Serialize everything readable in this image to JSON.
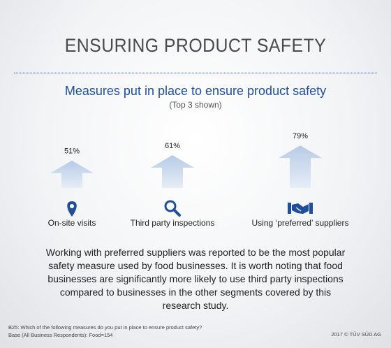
{
  "header": {
    "title": "ENSURING PRODUCT SAFETY"
  },
  "chart_data": {
    "type": "bar",
    "title": "Measures put in place to ensure product safety",
    "subtitle": "(Top 3 shown)",
    "categories": [
      "On-site visits",
      "Third party inspections",
      "Using ‘preferred’ suppliers"
    ],
    "values": [
      51,
      61,
      79
    ],
    "value_labels": [
      "51%",
      "61%",
      "79%"
    ],
    "icons": [
      "location-pin-icon",
      "magnifier-icon",
      "handshake-icon"
    ],
    "unit": "%",
    "ylim": [
      0,
      100
    ],
    "colors": {
      "arrow_fill": "#c3d4ea",
      "arrow_fill_light": "#e2eaf5",
      "icon": "#1f4e9a"
    }
  },
  "body": {
    "paragraph": "Working with preferred suppliers was reported to be the most popular safety measure used by food businesses. It is worth noting that food businesses are significantly more likely to use third party inspections compared to businesses in the other segments covered by this research study."
  },
  "footer": {
    "question": "B25: Which of the following measures do you put in place to ensure product safety?",
    "base": "Base (All Business Respondents): Food=154",
    "copyright": "2017 © TÜV SÜD AG"
  }
}
